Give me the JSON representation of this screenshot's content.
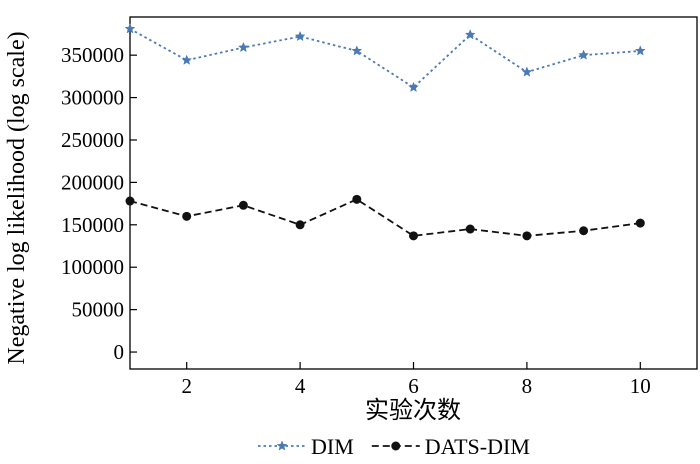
{
  "chart_data": {
    "type": "line",
    "xlabel": "实验次数",
    "ylabel": "Negative log likelihood (log scale)",
    "x": [
      1,
      2,
      3,
      4,
      5,
      6,
      7,
      8,
      9,
      10
    ],
    "xlim": [
      1,
      11
    ],
    "ylim": [
      -20000,
      395000
    ],
    "xticks": [
      2,
      4,
      6,
      8,
      10
    ],
    "yticks": [
      0,
      50000,
      100000,
      150000,
      200000,
      250000,
      300000,
      350000
    ],
    "grid": false,
    "legend_position": "bottom-center",
    "series": [
      {
        "name": "DIM",
        "color": "#4a7ab5",
        "line_style": "dotted",
        "marker": "star",
        "values": [
          381000,
          344000,
          359000,
          372000,
          355000,
          312000,
          374000,
          330000,
          350000,
          355000
        ]
      },
      {
        "name": "DATS-DIM",
        "color": "#111111",
        "line_style": "dashed",
        "marker": "circle",
        "values": [
          178000,
          160000,
          173000,
          150000,
          180000,
          137000,
          145000,
          137000,
          143000,
          152000
        ]
      }
    ]
  }
}
